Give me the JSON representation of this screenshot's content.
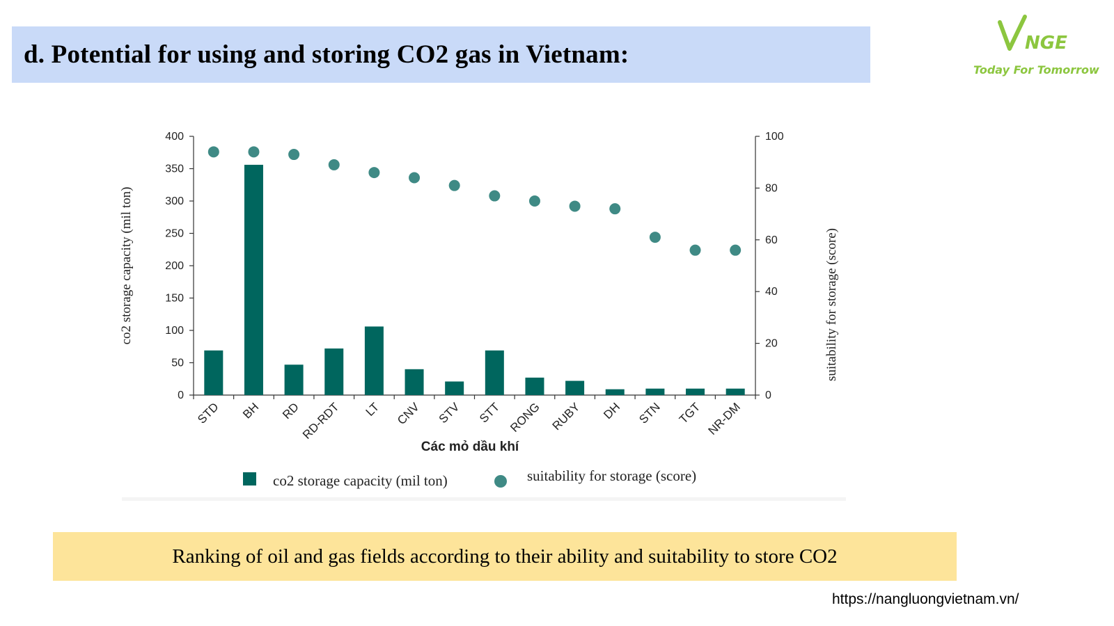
{
  "header": {
    "title": "d. Potential for using and storing CO2 gas in Vietnam:"
  },
  "logo": {
    "wordmark": "VNGE",
    "tagline": "Today For Tomorrow",
    "color": "#8cc63f"
  },
  "chart_data": {
    "type": "bar",
    "title": "",
    "xlabel": "Các mỏ dầu khí",
    "ylabel": "co2 storage capacity (mil ton)",
    "y2label": "suitability for storage (score)",
    "categories": [
      "STD",
      "BH",
      "RD",
      "RD-RDT",
      "LT",
      "CNV",
      "STV",
      "STT",
      "RONG",
      "RUBY",
      "DH",
      "STN",
      "TGT",
      "NR-DM"
    ],
    "series": [
      {
        "name": "co2 storage capacity (mil ton)",
        "type": "bar",
        "axis": "left",
        "color": "#00665e",
        "values": [
          69,
          356,
          47,
          72,
          106,
          40,
          21,
          69,
          27,
          22,
          9,
          10,
          10,
          10
        ]
      },
      {
        "name": "suitability for storage (score)",
        "type": "scatter",
        "axis": "right",
        "color": "#3f8a85",
        "values": [
          94,
          94,
          93,
          89,
          86,
          84,
          81,
          77,
          75,
          73,
          72,
          61,
          56,
          56
        ]
      }
    ],
    "ylim": [
      0,
      400
    ],
    "y_ticks": [
      0,
      50,
      100,
      150,
      200,
      250,
      300,
      350,
      400
    ],
    "y2lim": [
      0,
      100
    ],
    "y2_ticks": [
      0,
      20,
      40,
      60,
      80,
      100
    ],
    "grid": false,
    "legend_position": "bottom"
  },
  "caption": {
    "text": "Ranking of oil and gas fields according to their ability and suitability to store CO2"
  },
  "footer": {
    "url": "https://nangluongvietnam.vn/"
  }
}
